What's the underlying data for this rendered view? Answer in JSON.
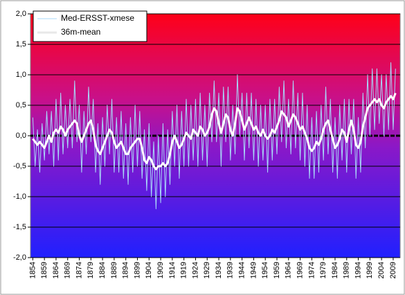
{
  "chart_data": {
    "type": "line",
    "x": [
      1854,
      1855,
      1856,
      1857,
      1858,
      1859,
      1860,
      1861,
      1862,
      1863,
      1864,
      1865,
      1866,
      1867,
      1868,
      1869,
      1870,
      1871,
      1872,
      1873,
      1874,
      1875,
      1876,
      1877,
      1878,
      1879,
      1880,
      1881,
      1882,
      1883,
      1884,
      1885,
      1886,
      1887,
      1888,
      1889,
      1890,
      1891,
      1892,
      1893,
      1894,
      1895,
      1896,
      1897,
      1898,
      1899,
      1900,
      1901,
      1902,
      1903,
      1904,
      1905,
      1906,
      1907,
      1908,
      1909,
      1910,
      1911,
      1912,
      1913,
      1914,
      1915,
      1916,
      1917,
      1918,
      1919,
      1920,
      1921,
      1922,
      1923,
      1924,
      1925,
      1926,
      1927,
      1928,
      1929,
      1930,
      1931,
      1932,
      1933,
      1934,
      1935,
      1936,
      1937,
      1938,
      1939,
      1940,
      1941,
      1942,
      1943,
      1944,
      1945,
      1946,
      1947,
      1948,
      1949,
      1950,
      1951,
      1952,
      1953,
      1954,
      1955,
      1956,
      1957,
      1958,
      1959,
      1960,
      1961,
      1962,
      1963,
      1964,
      1965,
      1966,
      1967,
      1968,
      1969,
      1970,
      1971,
      1972,
      1973,
      1974,
      1975,
      1976,
      1977,
      1978,
      1979,
      1980,
      1981,
      1982,
      1983,
      1984,
      1985,
      1986,
      1987,
      1988,
      1989,
      1990,
      1991,
      1992,
      1993,
      1994,
      1995,
      1996,
      1997,
      1998,
      1999,
      2000,
      2001,
      2002,
      2003,
      2004,
      2005,
      2006,
      2007,
      2008,
      2009,
      2010
    ],
    "series": [
      {
        "name": "Med-ERSST-xmese",
        "color": "#a8d8f8",
        "width": 1,
        "values": [
          0.3,
          -0.5,
          0.1,
          -0.6,
          0.2,
          -0.4,
          0.4,
          -0.3,
          0.4,
          -0.5,
          0.6,
          -0.4,
          0.7,
          -0.3,
          0.5,
          -0.2,
          0.6,
          -0.2,
          0.9,
          -0.1,
          0.5,
          -0.6,
          0.4,
          -0.3,
          0.8,
          -0.1,
          0.6,
          -0.6,
          0.2,
          -0.8,
          0.3,
          -0.5,
          0.5,
          -0.3,
          0.6,
          -0.6,
          0.3,
          -0.6,
          0.4,
          -0.7,
          0.2,
          -0.8,
          0.3,
          -0.6,
          0.5,
          -0.5,
          0.4,
          -0.7,
          0.1,
          -0.9,
          0.2,
          -1.0,
          -0.1,
          -1.2,
          0.0,
          -1.1,
          0.2,
          -1.0,
          0.1,
          -0.8,
          0.4,
          -0.5,
          0.5,
          -0.7,
          0.4,
          -0.5,
          0.6,
          -0.5,
          0.5,
          -0.4,
          0.6,
          -0.5,
          0.7,
          -0.4,
          0.5,
          -0.5,
          0.7,
          -0.1,
          0.9,
          -0.1,
          0.7,
          -0.5,
          0.8,
          -0.1,
          0.8,
          -0.4,
          0.5,
          -0.3,
          1.0,
          0.0,
          0.7,
          -0.4,
          0.7,
          -0.2,
          0.7,
          -0.4,
          0.6,
          -0.5,
          0.5,
          -0.4,
          0.5,
          -0.6,
          0.6,
          -0.4,
          0.6,
          -0.3,
          0.8,
          -0.1,
          0.9,
          -0.2,
          0.6,
          -0.3,
          0.9,
          -0.2,
          0.7,
          -0.4,
          0.7,
          -0.5,
          0.5,
          -0.7,
          0.3,
          -0.7,
          0.4,
          -0.6,
          0.5,
          -0.4,
          0.8,
          -0.3,
          0.6,
          -0.6,
          0.3,
          -0.7,
          0.5,
          -0.4,
          0.6,
          -0.6,
          0.6,
          -0.3,
          0.6,
          -0.7,
          0.3,
          -0.6,
          0.7,
          -0.2,
          1.0,
          0.0,
          1.1,
          0.1,
          1.1,
          0.2,
          1.0,
          0.0,
          1.0,
          0.1,
          1.2,
          0.1,
          1.1
        ]
      },
      {
        "name": "36m-mean",
        "color": "#ffffff",
        "width": 3,
        "values": [
          -0.05,
          -0.1,
          -0.15,
          -0.1,
          -0.15,
          -0.2,
          -0.1,
          0.0,
          -0.1,
          0.05,
          0.1,
          0.05,
          0.15,
          0.1,
          0.0,
          0.1,
          0.15,
          0.2,
          0.25,
          0.2,
          0.0,
          -0.1,
          0.0,
          0.1,
          0.2,
          0.25,
          0.1,
          -0.15,
          -0.25,
          -0.3,
          -0.2,
          -0.1,
          0.0,
          0.1,
          0.05,
          -0.1,
          -0.2,
          -0.15,
          -0.1,
          -0.2,
          -0.3,
          -0.3,
          -0.2,
          -0.15,
          -0.1,
          -0.05,
          -0.05,
          -0.2,
          -0.4,
          -0.45,
          -0.35,
          -0.4,
          -0.5,
          -0.55,
          -0.5,
          -0.5,
          -0.45,
          -0.5,
          -0.45,
          -0.3,
          -0.1,
          0.0,
          -0.1,
          -0.2,
          -0.15,
          -0.05,
          0.05,
          0.0,
          -0.05,
          0.1,
          0.05,
          0.0,
          0.15,
          0.1,
          0.0,
          0.05,
          0.15,
          0.35,
          0.45,
          0.4,
          0.2,
          0.05,
          0.2,
          0.35,
          0.3,
          0.1,
          0.0,
          0.2,
          0.45,
          0.4,
          0.25,
          0.1,
          0.2,
          0.3,
          0.2,
          0.1,
          0.15,
          0.05,
          0.0,
          0.1,
          0.0,
          -0.05,
          0.0,
          0.1,
          0.05,
          0.15,
          0.25,
          0.4,
          0.35,
          0.3,
          0.15,
          0.25,
          0.35,
          0.3,
          0.2,
          0.1,
          0.15,
          0.05,
          -0.05,
          -0.2,
          -0.25,
          -0.2,
          -0.1,
          -0.15,
          -0.05,
          0.1,
          0.2,
          0.25,
          0.1,
          -0.05,
          -0.2,
          -0.15,
          -0.05,
          0.1,
          0.05,
          -0.1,
          0.1,
          0.25,
          0.1,
          -0.15,
          -0.2,
          -0.1,
          0.15,
          0.3,
          0.45,
          0.5,
          0.55,
          0.6,
          0.55,
          0.6,
          0.5,
          0.45,
          0.55,
          0.6,
          0.65,
          0.6,
          0.7
        ]
      }
    ],
    "xlim": [
      1853,
      2012
    ],
    "xticks": [
      1854,
      1859,
      1864,
      1869,
      1874,
      1879,
      1884,
      1889,
      1894,
      1899,
      1904,
      1909,
      1914,
      1919,
      1924,
      1929,
      1934,
      1939,
      1944,
      1949,
      1954,
      1959,
      1964,
      1969,
      1974,
      1979,
      1984,
      1989,
      1994,
      1999,
      2004,
      2009
    ],
    "ylim": [
      -2,
      2
    ],
    "yticks": [
      {
        "value": -2,
        "label": "-2,0"
      },
      {
        "value": -1.5,
        "label": "-1,5"
      },
      {
        "value": -1,
        "label": "-1,0"
      },
      {
        "value": -0.5,
        "label": "-0,5"
      },
      {
        "value": 0,
        "label": "0,0"
      },
      {
        "value": 0.5,
        "label": "0,5"
      },
      {
        "value": 1,
        "label": "1,0"
      },
      {
        "value": 1.5,
        "label": "1,5"
      },
      {
        "value": 2,
        "label": "2,0"
      }
    ],
    "grid": true,
    "legend": "top-left"
  }
}
